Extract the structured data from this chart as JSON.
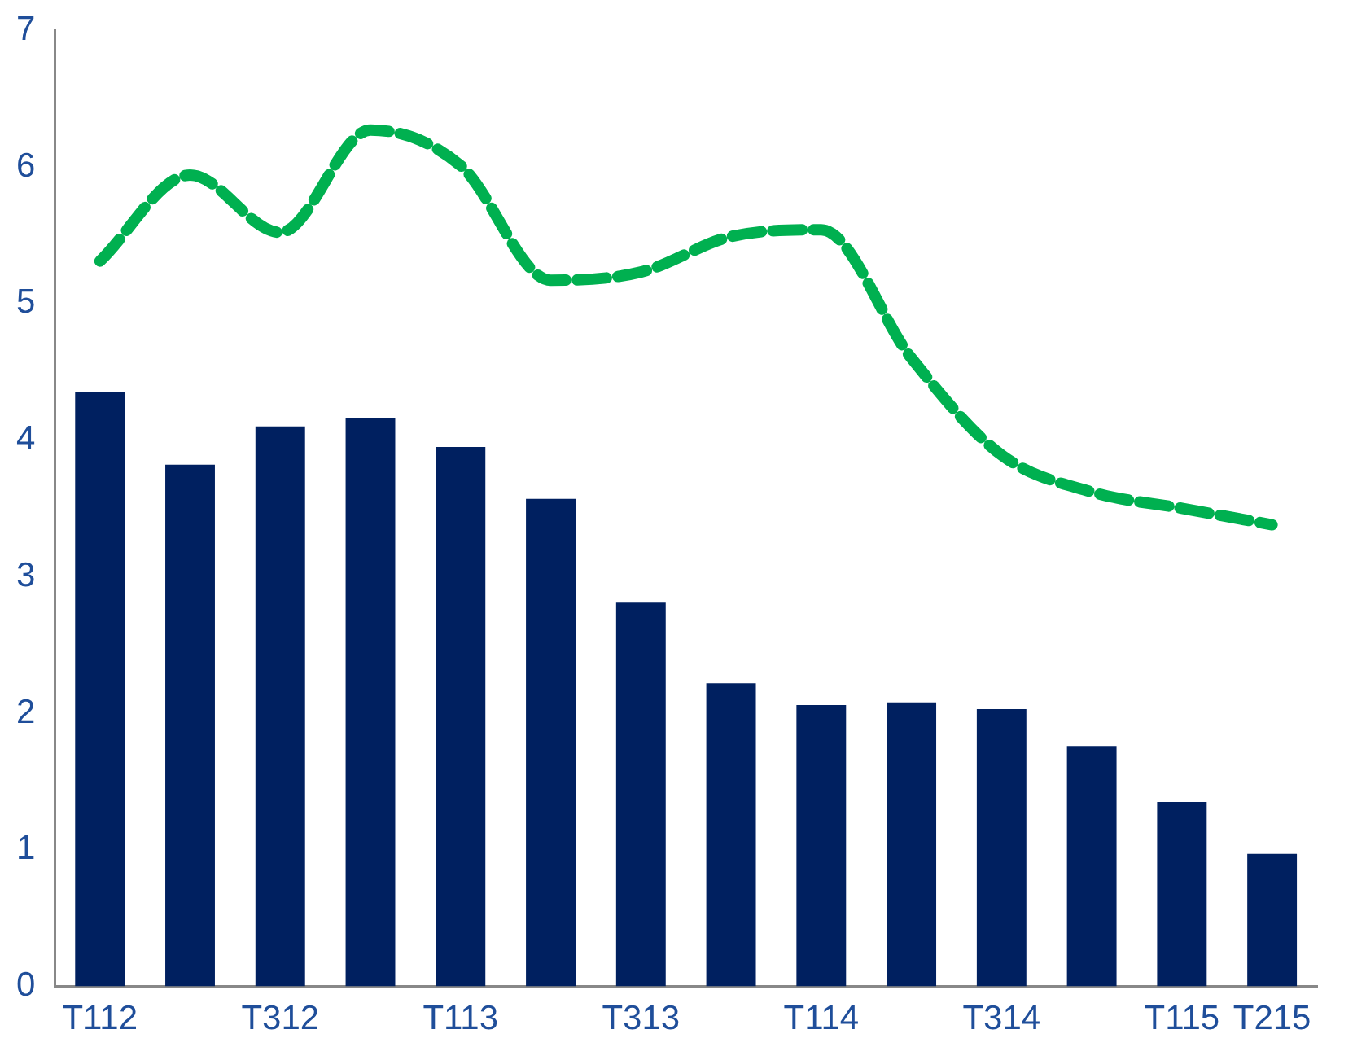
{
  "chart_data": {
    "type": "bar",
    "categories": [
      "T112",
      null,
      "T312",
      null,
      "T113",
      null,
      "T313",
      null,
      "T114",
      null,
      "T314",
      null,
      "T115",
      "T215"
    ],
    "series": [
      {
        "color": "#002060",
        "values": [
          4.35,
          3.82,
          4.1,
          4.16,
          3.95,
          3.57,
          2.81,
          2.22,
          2.06,
          2.08,
          2.03,
          1.76,
          1.35,
          0.97
        ]
      },
      {
        "type": "line",
        "color": "#00b050",
        "line_style": "dashed",
        "marker": "none",
        "values": [
          5.31,
          5.94,
          5.52,
          6.27,
          6.01,
          5.17,
          5.23,
          5.49,
          5.54,
          4.6,
          3.89,
          3.62,
          3.5,
          3.38
        ]
      }
    ],
    "ylim": [
      0,
      7
    ],
    "yticks": [
      0,
      1,
      2,
      3,
      4,
      5,
      6,
      7
    ],
    "grid": false,
    "legend": false
  }
}
